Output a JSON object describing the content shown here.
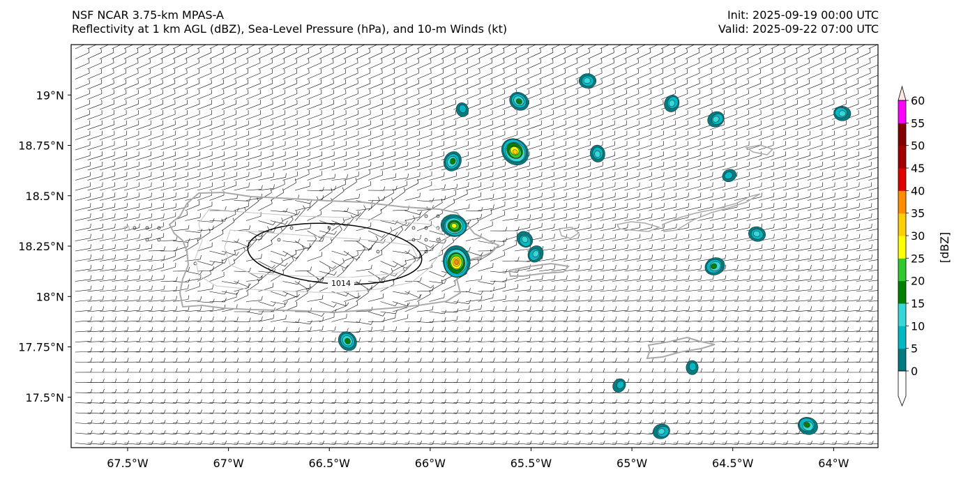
{
  "header": {
    "model": "NSF NCAR 3.75-km MPAS-A",
    "fields": "Reflectivity at 1 km AGL (dBZ), Sea-Level Pressure (hPa), and 10-m Winds (kt)",
    "init": "Init: 2025-09-19 00:00 UTC",
    "valid": "Valid: 2025-09-22 07:00 UTC"
  },
  "map": {
    "lon_range": [
      -67.78,
      -63.78
    ],
    "lat_range": [
      17.25,
      19.25
    ],
    "lon_ticks": [
      {
        "value": -67.5,
        "label": "67.5°W"
      },
      {
        "value": -67.0,
        "label": "67°W"
      },
      {
        "value": -66.5,
        "label": "66.5°W"
      },
      {
        "value": -66.0,
        "label": "66°W"
      },
      {
        "value": -65.5,
        "label": "65.5°W"
      },
      {
        "value": -65.0,
        "label": "65°W"
      },
      {
        "value": -64.5,
        "label": "64.5°W"
      },
      {
        "value": -64.0,
        "label": "64°W"
      }
    ],
    "lat_ticks": [
      {
        "value": 19.0,
        "label": "19°N"
      },
      {
        "value": 18.75,
        "label": "18.75°N"
      },
      {
        "value": 18.5,
        "label": "18.5°N"
      },
      {
        "value": 18.25,
        "label": "18.25°N"
      },
      {
        "value": 18.0,
        "label": "18°N"
      },
      {
        "value": 17.75,
        "label": "17.75°N"
      },
      {
        "value": 17.5,
        "label": "17.5°N"
      }
    ],
    "isobar_label": "1014",
    "colors": {
      "ocean": "#ffffff",
      "coast": "#a9a9a9",
      "barb": "#000000",
      "isobar": "#000000"
    }
  },
  "colorbar": {
    "label": "[dBZ]",
    "ticks": [
      "0",
      "5",
      "10",
      "15",
      "20",
      "25",
      "30",
      "35",
      "40",
      "45",
      "50",
      "55",
      "60"
    ],
    "colors": [
      "#007c80",
      "#00b8c4",
      "#38d8d8",
      "#008000",
      "#32c832",
      "#ffff00",
      "#ffd000",
      "#ff8c00",
      "#e00000",
      "#a00000",
      "#800000",
      "#ff00ff",
      "#ffe6e0"
    ]
  },
  "storms": [
    {
      "lon": -65.22,
      "lat": 19.07,
      "peak": 15
    },
    {
      "lon": -65.56,
      "lat": 18.97,
      "peak": 20
    },
    {
      "lon": -65.84,
      "lat": 18.93,
      "peak": 10
    },
    {
      "lon": -64.8,
      "lat": 18.96,
      "peak": 15
    },
    {
      "lon": -64.58,
      "lat": 18.88,
      "peak": 15
    },
    {
      "lon": -63.96,
      "lat": 18.91,
      "peak": 15
    },
    {
      "lon": -65.58,
      "lat": 18.72,
      "peak": 35
    },
    {
      "lon": -65.17,
      "lat": 18.71,
      "peak": 15
    },
    {
      "lon": -65.89,
      "lat": 18.67,
      "peak": 20
    },
    {
      "lon": -64.52,
      "lat": 18.6,
      "peak": 10
    },
    {
      "lon": -65.88,
      "lat": 18.35,
      "peak": 30
    },
    {
      "lon": -65.53,
      "lat": 18.28,
      "peak": 15
    },
    {
      "lon": -65.87,
      "lat": 18.17,
      "peak": 40
    },
    {
      "lon": -65.48,
      "lat": 18.21,
      "peak": 15
    },
    {
      "lon": -64.59,
      "lat": 18.15,
      "peak": 20
    },
    {
      "lon": -64.38,
      "lat": 18.31,
      "peak": 15
    },
    {
      "lon": -66.41,
      "lat": 17.78,
      "peak": 20
    },
    {
      "lon": -64.7,
      "lat": 17.65,
      "peak": 10
    },
    {
      "lon": -65.06,
      "lat": 17.56,
      "peak": 10
    },
    {
      "lon": -64.85,
      "lat": 17.33,
      "peak": 15
    },
    {
      "lon": -64.13,
      "lat": 17.36,
      "peak": 20
    }
  ]
}
